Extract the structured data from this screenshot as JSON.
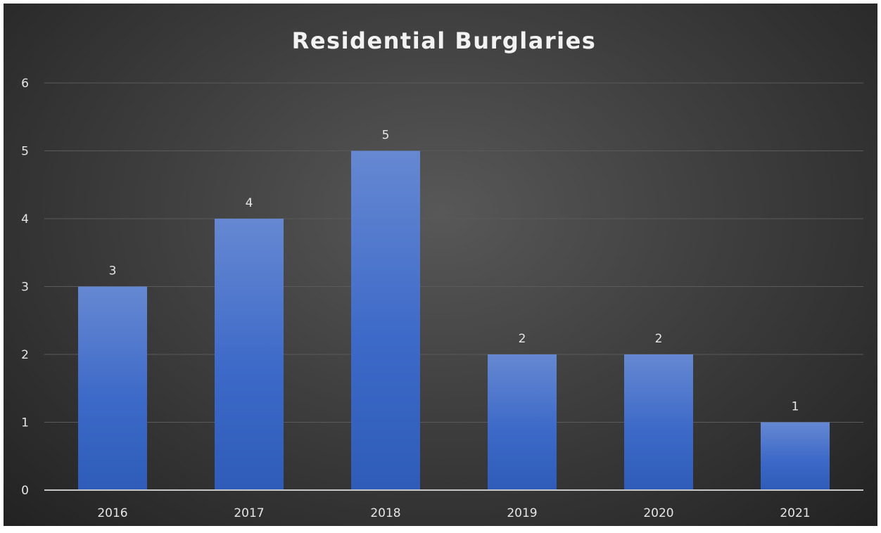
{
  "chart_data": {
    "type": "bar",
    "title": "Residential Burglaries",
    "categories": [
      "2016",
      "2017",
      "2018",
      "2019",
      "2020",
      "2021"
    ],
    "values": [
      3,
      4,
      5,
      2,
      2,
      1
    ],
    "xlabel": "",
    "ylabel": "",
    "ylim": [
      0,
      6
    ],
    "yticks": [
      "0",
      "1",
      "2",
      "3",
      "4",
      "5",
      "6"
    ],
    "grid": true,
    "legend": "none",
    "bar_color": "#4472C4",
    "background_color": "#404040"
  }
}
